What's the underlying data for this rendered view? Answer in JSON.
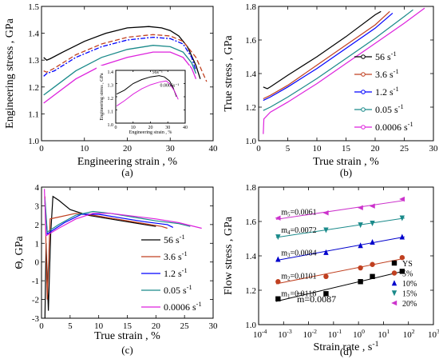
{
  "figure": {
    "panel_labels": [
      "(a)",
      "(b)",
      "(c)",
      "(d)"
    ]
  },
  "chart_data": [
    {
      "id": "a",
      "type": "line",
      "xlabel": "Engineering strain , %",
      "ylabel": "Engineering stress , GPa",
      "xlim": [
        0,
        40
      ],
      "ylim": [
        1.0,
        1.5
      ],
      "xticks": [
        0,
        10,
        20,
        30,
        40
      ],
      "yticks": [
        1.0,
        1.1,
        1.2,
        1.3,
        1.4,
        1.5
      ],
      "series": [
        {
          "color": "#000000",
          "dash": "",
          "points": [
            [
              0.5,
              1.31
            ],
            [
              1.2,
              1.3
            ],
            [
              2,
              1.305
            ],
            [
              5,
              1.33
            ],
            [
              10,
              1.37
            ],
            [
              15,
              1.4
            ],
            [
              20,
              1.42
            ],
            [
              25,
              1.425
            ],
            [
              28,
              1.42
            ],
            [
              30,
              1.41
            ],
            [
              32,
              1.39
            ],
            [
              34,
              1.35
            ],
            [
              36,
              1.28
            ],
            [
              37,
              1.23
            ]
          ]
        },
        {
          "color": "#c04020",
          "dash": "6 3",
          "points": [
            [
              0.5,
              1.26
            ],
            [
              1.2,
              1.255
            ],
            [
              3,
              1.27
            ],
            [
              8,
              1.32
            ],
            [
              14,
              1.36
            ],
            [
              20,
              1.385
            ],
            [
              26,
              1.395
            ],
            [
              30,
              1.39
            ],
            [
              33,
              1.37
            ],
            [
              36,
              1.31
            ],
            [
              38.5,
              1.22
            ]
          ]
        },
        {
          "color": "#0000ff",
          "dash": "6 2 2 2",
          "points": [
            [
              0.5,
              1.24
            ],
            [
              1.2,
              1.25
            ],
            [
              3,
              1.26
            ],
            [
              8,
              1.31
            ],
            [
              14,
              1.35
            ],
            [
              20,
              1.375
            ],
            [
              26,
              1.385
            ],
            [
              30,
              1.38
            ],
            [
              33,
              1.36
            ],
            [
              35,
              1.31
            ],
            [
              36,
              1.26
            ]
          ]
        },
        {
          "color": "#1a8a8a",
          "dash": "",
          "points": [
            [
              0.5,
              1.17
            ],
            [
              3,
              1.2
            ],
            [
              8,
              1.26
            ],
            [
              14,
              1.31
            ],
            [
              20,
              1.34
            ],
            [
              26,
              1.355
            ],
            [
              30,
              1.35
            ],
            [
              33,
              1.33
            ],
            [
              35,
              1.29
            ],
            [
              36,
              1.25
            ]
          ]
        },
        {
          "color": "#dd22dd",
          "dash": "",
          "points": [
            [
              0.5,
              1.14
            ],
            [
              3,
              1.17
            ],
            [
              8,
              1.23
            ],
            [
              14,
              1.28
            ],
            [
              20,
              1.31
            ],
            [
              26,
              1.33
            ],
            [
              30,
              1.33
            ],
            [
              33,
              1.31
            ],
            [
              35,
              1.27
            ],
            [
              36,
              1.23
            ]
          ]
        }
      ],
      "inset": {
        "xlabel": "Engineering strain , %",
        "ylabel": "Engineering stress , GPa",
        "xlim": [
          0,
          40
        ],
        "ylim": [
          1.0,
          1.4
        ],
        "xticks": [
          0,
          10,
          20,
          30,
          40
        ],
        "yticks": [
          1.0,
          1.1,
          1.2,
          1.3,
          1.4
        ],
        "annotations": [
          "56s⁻¹",
          "0.0006s⁻¹"
        ],
        "series": [
          {
            "color": "#000000",
            "points": [
              [
                0.5,
                1.22
              ],
              [
                5,
                1.25
              ],
              [
                10,
                1.3
              ],
              [
                15,
                1.33
              ],
              [
                20,
                1.35
              ],
              [
                25,
                1.36
              ],
              [
                28,
                1.35
              ],
              [
                31,
                1.32
              ],
              [
                33,
                1.27
              ],
              [
                35,
                1.2
              ]
            ]
          },
          {
            "color": "#dd22dd",
            "points": [
              [
                0.5,
                1.13
              ],
              [
                5,
                1.17
              ],
              [
                10,
                1.22
              ],
              [
                15,
                1.26
              ],
              [
                20,
                1.29
              ],
              [
                25,
                1.31
              ],
              [
                29,
                1.32
              ],
              [
                31,
                1.3
              ],
              [
                34,
                1.24
              ],
              [
                36,
                1.18
              ]
            ]
          }
        ]
      }
    },
    {
      "id": "b",
      "type": "line",
      "xlabel": "True strain , %",
      "ylabel": "True stress , GPa",
      "xlim": [
        0,
        30
      ],
      "ylim": [
        1.0,
        1.8
      ],
      "xticks": [
        0,
        5,
        10,
        15,
        20,
        25,
        30
      ],
      "yticks": [
        1.0,
        1.2,
        1.4,
        1.6,
        1.8
      ],
      "legend": {
        "placement": "right",
        "entries": [
          {
            "base": "56 s",
            "sup": "-1",
            "color": "#000000"
          },
          {
            "base": "3.6 s",
            "sup": "-1",
            "color": "#c04020"
          },
          {
            "base": "1.2 s",
            "sup": "-1",
            "color": "#0000ff"
          },
          {
            "base": "0.05 s",
            "sup": "-1",
            "color": "#1a8a8a"
          },
          {
            "base": "0.0006 s",
            "sup": "-1",
            "color": "#dd22dd"
          }
        ]
      },
      "series": [
        {
          "color": "#000000",
          "points": [
            [
              0.8,
              1.32
            ],
            [
              1.5,
              1.31
            ],
            [
              2,
              1.32
            ],
            [
              5,
              1.39
            ],
            [
              10,
              1.5
            ],
            [
              15,
              1.62
            ],
            [
              20,
              1.75
            ],
            [
              21,
              1.77
            ]
          ]
        },
        {
          "color": "#c04020",
          "points": [
            [
              0.8,
              1.25
            ],
            [
              2,
              1.27
            ],
            [
              5,
              1.33
            ],
            [
              10,
              1.45
            ],
            [
              15,
              1.57
            ],
            [
              20,
              1.69
            ],
            [
              22.5,
              1.77
            ]
          ]
        },
        {
          "color": "#0000ff",
          "points": [
            [
              0.8,
              1.24
            ],
            [
              2,
              1.26
            ],
            [
              5,
              1.32
            ],
            [
              10,
              1.43
            ],
            [
              15,
              1.55
            ],
            [
              20,
              1.67
            ],
            [
              23,
              1.76
            ]
          ]
        },
        {
          "color": "#1a8a8a",
          "points": [
            [
              0.8,
              1.18
            ],
            [
              2,
              1.2
            ],
            [
              5,
              1.26
            ],
            [
              10,
              1.37
            ],
            [
              15,
              1.49
            ],
            [
              20,
              1.61
            ],
            [
              25,
              1.74
            ],
            [
              26.5,
              1.78
            ]
          ]
        },
        {
          "color": "#dd22dd",
          "points": [
            [
              0.8,
              1.04
            ],
            [
              0.9,
              1.13
            ],
            [
              2,
              1.17
            ],
            [
              5,
              1.23
            ],
            [
              10,
              1.34
            ],
            [
              15,
              1.46
            ],
            [
              20,
              1.58
            ],
            [
              25,
              1.7
            ],
            [
              28.5,
              1.79
            ]
          ]
        }
      ]
    },
    {
      "id": "c",
      "type": "line",
      "xlabel": "True strain , %",
      "ylabel": "Θ, GPa",
      "xlim": [
        0,
        30
      ],
      "ylim": [
        -3,
        4
      ],
      "xticks": [
        0,
        5,
        10,
        15,
        20,
        25,
        30
      ],
      "yticks": [
        -3,
        -2,
        -1,
        0,
        1,
        2,
        3,
        4
      ],
      "legend": {
        "placement": "lower-right",
        "entries": [
          {
            "base": "56 s",
            "sup": "-1",
            "color": "#000000"
          },
          {
            "base": "3.6 s",
            "sup": "-1",
            "color": "#c04020"
          },
          {
            "base": "1.2 s",
            "sup": "-1",
            "color": "#0000ff"
          },
          {
            "base": "0.05 s",
            "sup": "-1",
            "color": "#1a8a8a"
          },
          {
            "base": "0.0006 s",
            "sup": "-1",
            "color": "#dd22dd"
          }
        ]
      },
      "series": [
        {
          "color": "#000000",
          "points": [
            [
              0.6,
              -3
            ],
            [
              0.8,
              1.0
            ],
            [
              1.2,
              -2.6
            ],
            [
              1.6,
              1.5
            ],
            [
              2,
              3.5
            ],
            [
              3,
              3.3
            ],
            [
              5,
              2.8
            ],
            [
              8,
              2.5
            ],
            [
              12,
              2.3
            ],
            [
              16,
              2.1
            ],
            [
              20,
              1.9
            ]
          ]
        },
        {
          "color": "#c04020",
          "points": [
            [
              0.6,
              3.5
            ],
            [
              1.0,
              -2.0
            ],
            [
              1.5,
              2.3
            ],
            [
              3,
              2.4
            ],
            [
              6,
              2.6
            ],
            [
              9,
              2.5
            ],
            [
              13,
              2.3
            ],
            [
              17,
              2.1
            ],
            [
              21,
              1.9
            ],
            [
              22,
              1.8
            ]
          ]
        },
        {
          "color": "#0000ff",
          "points": [
            [
              0.6,
              3.2
            ],
            [
              1.0,
              1.5
            ],
            [
              2,
              1.7
            ],
            [
              4,
              2.1
            ],
            [
              7,
              2.55
            ],
            [
              10,
              2.55
            ],
            [
              14,
              2.35
            ],
            [
              18,
              2.15
            ],
            [
              22,
              2.0
            ],
            [
              23,
              1.85
            ]
          ]
        },
        {
          "color": "#1a8a8a",
          "points": [
            [
              0.6,
              3.4
            ],
            [
              1.0,
              1.6
            ],
            [
              3,
              2.0
            ],
            [
              6,
              2.5
            ],
            [
              9,
              2.7
            ],
            [
              12,
              2.6
            ],
            [
              16,
              2.4
            ],
            [
              20,
              2.2
            ],
            [
              24,
              2.05
            ],
            [
              26,
              1.9
            ]
          ]
        },
        {
          "color": "#dd22dd",
          "points": [
            [
              0.5,
              3.9
            ],
            [
              0.8,
              1.4
            ],
            [
              3,
              1.8
            ],
            [
              6,
              2.3
            ],
            [
              9,
              2.6
            ],
            [
              12,
              2.6
            ],
            [
              16,
              2.45
            ],
            [
              20,
              2.3
            ],
            [
              24,
              2.1
            ],
            [
              28,
              1.8
            ]
          ]
        }
      ]
    },
    {
      "id": "d",
      "type": "scatter",
      "xlabel": "Strain rate , s",
      "xlabel_sup": "-1",
      "ylabel": "Flow stress , GPa",
      "xscale": "log",
      "xlim": [
        0.0001,
        1000
      ],
      "ylim": [
        1.0,
        1.8
      ],
      "xticks": [
        {
          "base": "10",
          "sup": "-4",
          "v": 0.0001
        },
        {
          "base": "10",
          "sup": "-3",
          "v": 0.001
        },
        {
          "base": "10",
          "sup": "-2",
          "v": 0.01
        },
        {
          "base": "10",
          "sup": "-1",
          "v": 0.1
        },
        {
          "base": "10",
          "sup": "0",
          "v": 1
        },
        {
          "base": "10",
          "sup": "1",
          "v": 10
        },
        {
          "base": "10",
          "sup": "2",
          "v": 100
        },
        {
          "base": "10",
          "sup": "3",
          "v": 1000
        }
      ],
      "yticks": [
        1.0,
        1.2,
        1.4,
        1.6,
        1.8
      ],
      "mean_m": "m=0.0087",
      "legend": {
        "placement": "lower-right",
        "entries": [
          {
            "label": "YS",
            "color": "#000000",
            "marker": "square"
          },
          {
            "label": "5%",
            "color": "#c04020",
            "marker": "circle"
          },
          {
            "label": "10%",
            "color": "#0000cc",
            "marker": "triangle-up"
          },
          {
            "label": "15%",
            "color": "#1a8a8a",
            "marker": "triangle-down"
          },
          {
            "label": "20%",
            "color": "#cc33cc",
            "marker": "triangle-left"
          }
        ]
      },
      "series": [
        {
          "name": "YS",
          "m_label": "m",
          "m_sub": "1",
          "m_value": "=0.0116",
          "color": "#000000",
          "marker": "square",
          "x": [
            0.0006,
            0.05,
            1.2,
            3.6,
            56
          ],
          "y": [
            1.15,
            1.18,
            1.25,
            1.28,
            1.31
          ]
        },
        {
          "name": "5%",
          "m_label": "m",
          "m_sub": "2",
          "m_value": "=0.0101",
          "color": "#c04020",
          "marker": "circle",
          "x": [
            0.0006,
            0.05,
            1.2,
            3.6,
            56
          ],
          "y": [
            1.25,
            1.28,
            1.33,
            1.35,
            1.39
          ]
        },
        {
          "name": "10%",
          "m_label": "m",
          "m_sub": "3",
          "m_value": "=0.0084",
          "color": "#0000cc",
          "marker": "triangle-up",
          "x": [
            0.0006,
            0.05,
            1.2,
            3.6,
            56
          ],
          "y": [
            1.38,
            1.42,
            1.46,
            1.48,
            1.51
          ]
        },
        {
          "name": "15%",
          "m_label": "m",
          "m_sub": "4",
          "m_value": "=0.0072",
          "color": "#1a8a8a",
          "marker": "triangle-down",
          "x": [
            0.0006,
            0.05,
            1.2,
            3.6,
            56
          ],
          "y": [
            1.51,
            1.55,
            1.58,
            1.59,
            1.62
          ]
        },
        {
          "name": "20%",
          "m_label": "m",
          "m_sub": "5",
          "m_value": "=0.0061",
          "color": "#cc33cc",
          "marker": "triangle-left",
          "x": [
            0.0006,
            0.05,
            1.2,
            3.6,
            56
          ],
          "y": [
            1.62,
            1.65,
            1.68,
            1.69,
            1.73
          ]
        }
      ]
    }
  ]
}
